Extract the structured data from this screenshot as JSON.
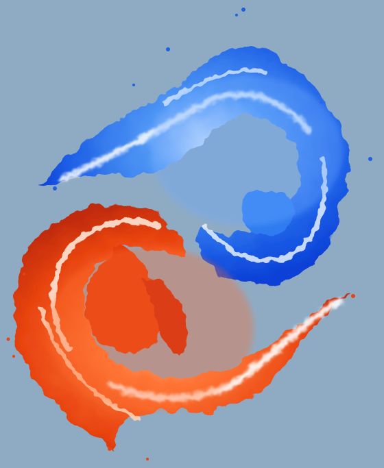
{
  "colors": {
    "background": "#8fabc4",
    "blue_fire_deep": "#0a3fd6",
    "blue_fire_mid": "#2f7cf0",
    "blue_fire_light": "#9cc8ff",
    "fire_core_white": "#ffffff",
    "red_fire_deep": "#c8280a",
    "red_fire_mid": "#f2551a",
    "red_fire_light": "#ffb07a"
  },
  "illustration": {
    "upper_flame": "blue-flame",
    "lower_flame": "red-flame"
  }
}
